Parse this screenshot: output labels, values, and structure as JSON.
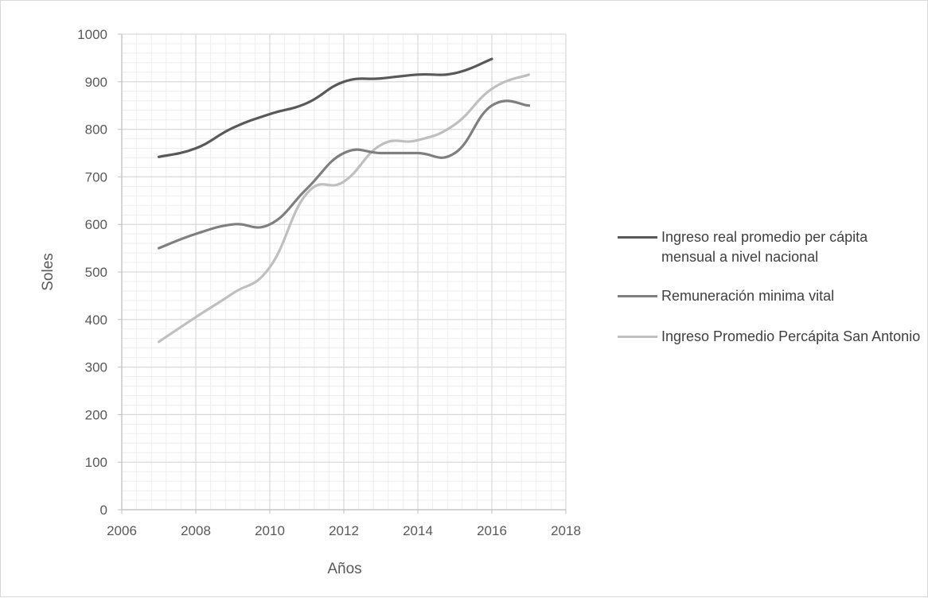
{
  "chart_data": {
    "type": "line",
    "title": "",
    "xlabel": "Años",
    "ylabel": "Soles",
    "xlim": [
      2006,
      2018
    ],
    "ylim": [
      0,
      1000
    ],
    "x_ticks": [
      "2006",
      "2008",
      "2010",
      "2012",
      "2014",
      "2016",
      "2018"
    ],
    "y_ticks": [
      "0",
      "100",
      "200",
      "300",
      "400",
      "500",
      "600",
      "700",
      "800",
      "900",
      "1000"
    ],
    "grid": "major and minor",
    "legend_position": "right",
    "series": [
      {
        "name": "Ingreso real promedio per cápita mensual a nivel nacional",
        "color": "#595959",
        "x": [
          2007,
          2008,
          2009,
          2010,
          2011,
          2012,
          2013,
          2014,
          2015,
          2016
        ],
        "y": [
          742,
          760,
          803,
          832,
          855,
          900,
          907,
          915,
          918,
          948
        ]
      },
      {
        "name": "Remuneración minima vital",
        "color": "#7f7f7f",
        "x": [
          2007,
          2008,
          2009,
          2010,
          2011,
          2012,
          2013,
          2014,
          2015,
          2016,
          2017
        ],
        "y": [
          550,
          580,
          600,
          600,
          675,
          750,
          750,
          750,
          750,
          850,
          850
        ]
      },
      {
        "name": "Ingreso Promedio Percápita San Antonio",
        "color": "#bfbfbf",
        "x": [
          2007,
          2008,
          2009,
          2010,
          2011,
          2012,
          2013,
          2014,
          2015,
          2016,
          2017
        ],
        "y": [
          353,
          405,
          455,
          510,
          665,
          690,
          767,
          777,
          810,
          885,
          915
        ]
      }
    ]
  }
}
